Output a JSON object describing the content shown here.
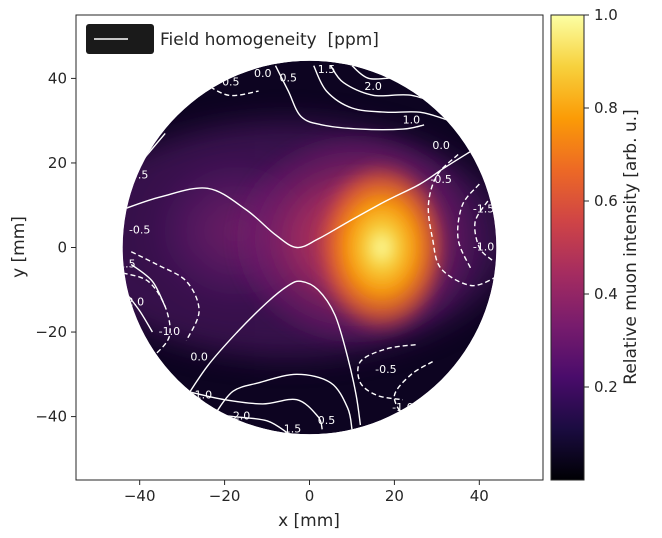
{
  "chart_data": {
    "type": "heatmap",
    "title": "",
    "xlabel": "x [mm]",
    "ylabel": "y [mm]",
    "xlim": [
      -55,
      55
    ],
    "ylim": [
      -55,
      55
    ],
    "x_ticks": [
      -40,
      -20,
      0,
      20,
      40
    ],
    "y_ticks": [
      -40,
      -20,
      0,
      20,
      40
    ],
    "x_tick_labels": [
      "−40",
      "−20",
      "0",
      "20",
      "40"
    ],
    "y_tick_labels": [
      "−40",
      "−20",
      "0",
      "20",
      "40"
    ],
    "grid": false,
    "mask": {
      "shape": "circle",
      "center": [
        0,
        0
      ],
      "radius": 44
    },
    "intensity": {
      "description_label": "Relative muon intensity [arb. u.]",
      "peak_position": [
        17,
        0
      ],
      "peak_value": 1.0
    },
    "colorbar": {
      "label": "Relative muon intensity [arb. u.]",
      "colormap": "inferno",
      "range": [
        0.0,
        1.0
      ],
      "ticks": [
        0.2,
        0.4,
        0.6,
        0.8,
        1.0
      ],
      "tick_labels": [
        "0.2",
        "0.4",
        "0.6",
        "0.8",
        "1.0"
      ]
    },
    "legend": {
      "position": "top-left",
      "entries": [
        {
          "label": "Field homogeneity  [ppm]",
          "style": "white-line"
        }
      ]
    },
    "contour_levels": [
      -2.0,
      -1.5,
      -1.0,
      -0.5,
      0.0,
      0.5,
      1.0,
      1.5,
      2.0
    ],
    "contour_labels": [
      {
        "text": "0.0",
        "x": -11,
        "y": 41,
        "level": 0.0
      },
      {
        "text": "0.5",
        "x": -5,
        "y": 40,
        "level": 0.5
      },
      {
        "text": "1.5",
        "x": 4,
        "y": 42,
        "level": 1.5
      },
      {
        "text": "2.0",
        "x": 15,
        "y": 38,
        "level": 2.0
      },
      {
        "text": "1.0",
        "x": 24,
        "y": 30,
        "level": 1.0
      },
      {
        "text": "0.0",
        "x": 31,
        "y": 24,
        "level": 0.0
      },
      {
        "text": "-0.5",
        "x": 31,
        "y": 16,
        "level": -0.5
      },
      {
        "text": "-1.5",
        "x": 41,
        "y": 9,
        "level": -1.5
      },
      {
        "text": "-1.0",
        "x": 41,
        "y": 0,
        "level": -1.0
      },
      {
        "text": "-0.5",
        "x": -19,
        "y": 39,
        "level": -0.5
      },
      {
        "text": "0.5",
        "x": -40,
        "y": 17,
        "level": 0.5
      },
      {
        "text": "-0.5",
        "x": -40,
        "y": 4,
        "level": -0.5
      },
      {
        "text": "1.5",
        "x": -43,
        "y": -4,
        "level": 1.5
      },
      {
        "text": "2.0",
        "x": -41,
        "y": -13,
        "level": 2.0
      },
      {
        "text": "-1.0",
        "x": -33,
        "y": -20,
        "level": -1.0
      },
      {
        "text": "0.0",
        "x": -26,
        "y": -26,
        "level": 0.0
      },
      {
        "text": "1.0",
        "x": -25,
        "y": -35,
        "level": 1.0
      },
      {
        "text": "2.0",
        "x": -16,
        "y": -40,
        "level": 2.0
      },
      {
        "text": "1.5",
        "x": -4,
        "y": -43,
        "level": 1.5
      },
      {
        "text": "0.5",
        "x": 4,
        "y": -41,
        "level": 0.5
      },
      {
        "text": "-0.5",
        "x": 18,
        "y": -29,
        "level": -0.5
      },
      {
        "text": "-1.0",
        "x": 22,
        "y": -38,
        "level": -1.0
      }
    ],
    "contours": [
      {
        "level": 0.0,
        "points": [
          [
            -44,
            9
          ],
          [
            -35,
            12
          ],
          [
            -24,
            14
          ],
          [
            -15,
            9
          ],
          [
            -8,
            3
          ],
          [
            -3,
            0
          ],
          [
            2,
            2
          ],
          [
            9,
            6
          ],
          [
            18,
            11
          ],
          [
            26,
            15
          ],
          [
            32,
            19
          ],
          [
            40,
            24
          ]
        ]
      },
      {
        "level": 0.0,
        "points": [
          [
            -30,
            -37
          ],
          [
            -24,
            -28
          ],
          [
            -17,
            -20
          ],
          [
            -10,
            -13
          ],
          [
            -5,
            -9
          ],
          [
            -2,
            -8
          ],
          [
            2,
            -10
          ],
          [
            6,
            -16
          ],
          [
            9,
            -26
          ],
          [
            11,
            -35
          ],
          [
            12,
            -42
          ]
        ]
      },
      {
        "level": 0.5,
        "points": [
          [
            -8,
            43
          ],
          [
            -5,
            37
          ],
          [
            -2,
            31
          ],
          [
            3,
            29
          ],
          [
            12,
            28
          ],
          [
            22,
            28
          ],
          [
            27,
            29
          ]
        ]
      },
      {
        "level": 0.5,
        "points": [
          [
            -43,
            16
          ],
          [
            -39,
            21
          ],
          [
            -34,
            27
          ]
        ]
      },
      {
        "level": 0.5,
        "points": [
          [
            -22,
            -39
          ],
          [
            -18,
            -34
          ],
          [
            -12,
            -32
          ],
          [
            -3,
            -30
          ],
          [
            5,
            -32
          ],
          [
            9,
            -38
          ],
          [
            10,
            -43
          ]
        ]
      },
      {
        "level": 1.0,
        "points": [
          [
            1,
            43
          ],
          [
            4,
            37
          ],
          [
            10,
            33
          ],
          [
            18,
            32
          ],
          [
            26,
            32
          ],
          [
            33,
            30
          ]
        ]
      },
      {
        "level": 1.0,
        "points": [
          [
            -29,
            -34
          ],
          [
            -20,
            -36
          ],
          [
            -11,
            -37
          ],
          [
            -3,
            -36
          ],
          [
            2,
            -40
          ],
          [
            3,
            -43
          ]
        ]
      },
      {
        "level": 1.5,
        "points": [
          [
            5,
            43
          ],
          [
            8,
            39
          ],
          [
            15,
            36
          ],
          [
            24,
            36
          ],
          [
            33,
            33
          ]
        ]
      },
      {
        "level": 1.5,
        "points": [
          [
            -42,
            -4
          ],
          [
            -37,
            -8
          ],
          [
            -34,
            -14
          ]
        ]
      },
      {
        "level": 1.5,
        "points": [
          [
            -27,
            -39
          ],
          [
            -18,
            -40
          ],
          [
            -10,
            -41
          ],
          [
            -5,
            -44
          ]
        ]
      },
      {
        "level": 2.0,
        "points": [
          [
            10,
            43
          ],
          [
            14,
            40
          ],
          [
            21,
            40
          ],
          [
            30,
            38
          ]
        ]
      },
      {
        "level": 2.0,
        "points": [
          [
            -43,
            -11
          ],
          [
            -40,
            -15
          ],
          [
            -37,
            -20
          ]
        ]
      },
      {
        "level": 2.0,
        "points": [
          [
            -24,
            -41
          ],
          [
            -17,
            -43
          ]
        ]
      },
      {
        "level": -0.5,
        "dashed": true,
        "points": [
          [
            -25,
            39
          ],
          [
            -19,
            36
          ],
          [
            -12,
            37
          ]
        ]
      },
      {
        "level": -0.5,
        "dashed": true,
        "points": [
          [
            -42,
            -1
          ],
          [
            -36,
            -4
          ],
          [
            -29,
            -8
          ],
          [
            -26,
            -15
          ],
          [
            -29,
            -22
          ]
        ]
      },
      {
        "level": -0.5,
        "dashed": true,
        "points": [
          [
            25,
            -23
          ],
          [
            18,
            -24
          ],
          [
            12,
            -27
          ],
          [
            12,
            -32
          ],
          [
            16,
            -35
          ],
          [
            22,
            -36
          ]
        ]
      },
      {
        "level": -0.5,
        "dashed": true,
        "points": [
          [
            35,
            22
          ],
          [
            30,
            17
          ],
          [
            28,
            10
          ],
          [
            29,
            2
          ],
          [
            31,
            -5
          ],
          [
            38,
            -9
          ],
          [
            44,
            -7
          ]
        ]
      },
      {
        "level": -1.0,
        "dashed": true,
        "points": [
          [
            40,
            15
          ],
          [
            36,
            10
          ],
          [
            35,
            2
          ],
          [
            38,
            -5
          ]
        ]
      },
      {
        "level": -1.0,
        "dashed": true,
        "points": [
          [
            -44,
            -6
          ],
          [
            -38,
            -8
          ],
          [
            -34,
            -14
          ],
          [
            -33,
            -21
          ],
          [
            -37,
            -26
          ]
        ]
      },
      {
        "level": -1.0,
        "dashed": true,
        "points": [
          [
            29,
            -27
          ],
          [
            24,
            -30
          ],
          [
            20,
            -35
          ],
          [
            22,
            -40
          ]
        ]
      },
      {
        "level": -1.5,
        "dashed": true,
        "points": [
          [
            42,
            11
          ],
          [
            39,
            6
          ],
          [
            40,
            0
          ],
          [
            43,
            -3
          ]
        ]
      }
    ]
  },
  "colors": {
    "contour": "#ffffff",
    "colormap_stops": [
      "#000004",
      "#1b0c41",
      "#4a0c6b",
      "#781c6d",
      "#a52c60",
      "#cf4446",
      "#ed6925",
      "#fb9b06",
      "#f7d13d",
      "#fcffa4"
    ]
  }
}
